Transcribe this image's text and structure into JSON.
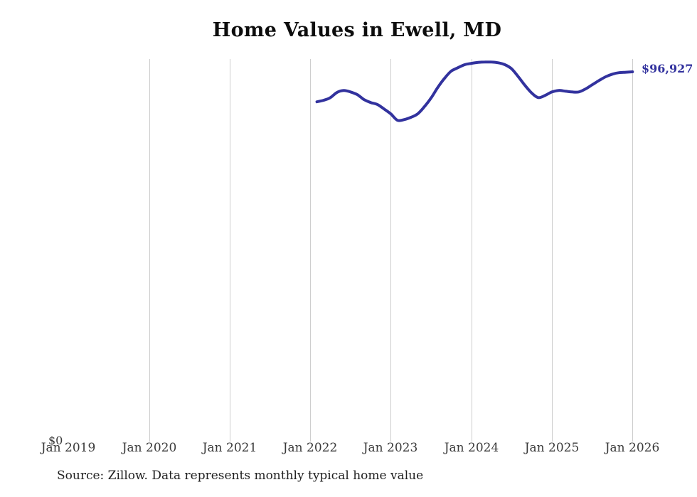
{
  "header": {
    "title": "Home Values in Ewell, MD"
  },
  "footer": {
    "source_note": "Source: Zillow. Data represents monthly typical home value"
  },
  "colors": {
    "line": "#32329e",
    "end_label": "#32329e",
    "gridline": "#cdcdcd",
    "tick_label": "#3a3a3a",
    "title": "#0d0d0d",
    "source": "#1f1f1f",
    "background": "#ffffff"
  },
  "chart_data": {
    "type": "line",
    "title": "Home Values in Ewell, MD",
    "xlabel": "",
    "ylabel": "",
    "xlim": [
      "Jan 2019",
      "Jan 2026"
    ],
    "ylim": [
      0,
      100300
    ],
    "grid": "vertical-only",
    "legend": false,
    "x_tick_labels": [
      "Jan 2019",
      "Jan 2020",
      "Jan 2021",
      "Jan 2022",
      "Jan 2023",
      "Jan 2024",
      "Jan 2025",
      "Jan 2026"
    ],
    "y_tick_labels": [
      "$0"
    ],
    "gridline_months": [
      "Jan 2020",
      "Jan 2021",
      "Jan 2022",
      "Jan 2023",
      "Jan 2024",
      "Jan 2025",
      "Jan 2026"
    ],
    "series": [
      {
        "name": "Monthly typical home value",
        "color": "#32329e",
        "interval": "monthly",
        "start": "Feb 2022",
        "end": "Jan 2026",
        "end_value": 96927,
        "end_value_label": "$96,927",
        "values": [
          89000,
          89400,
          90100,
          91500,
          92000,
          91600,
          90900,
          89600,
          88800,
          88300,
          87100,
          85800,
          84100,
          84300,
          84900,
          85800,
          87700,
          90000,
          92800,
          95200,
          97100,
          98000,
          98800,
          99150,
          99400,
          99500,
          99500,
          99300,
          98800,
          97700,
          95600,
          93300,
          91300,
          90100,
          90700,
          91600,
          92000,
          91800,
          91600,
          91600,
          92400,
          93500,
          94600,
          95600,
          96300,
          96700,
          96800,
          96927
        ]
      }
    ],
    "annotations": [
      {
        "text": "$96,927",
        "position": "line-end",
        "color": "#32329e"
      }
    ]
  }
}
